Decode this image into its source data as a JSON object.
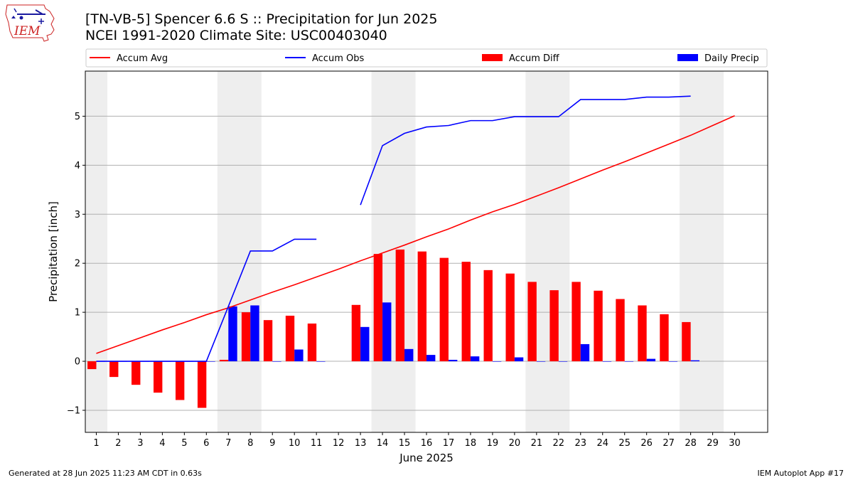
{
  "header": {
    "title_line1": "[TN-VB-5] Spencer 6.6 S :: Precipitation for Jun 2025",
    "title_line2": "NCEI 1991-2020 Climate Site: USC00403040",
    "logo_text": "IEM"
  },
  "footer": {
    "generated": "Generated at 28 Jun 2025 11:23 AM CDT in 0.63s",
    "app": "IEM Autoplot App #17"
  },
  "chart_data": {
    "type": "bar",
    "xlabel": "June 2025",
    "ylabel": "Precipitation [inch]",
    "xlim": [
      0.5,
      31.5
    ],
    "ylim": [
      -1.45,
      5.92
    ],
    "yticks": [
      -1,
      0,
      1,
      2,
      3,
      4,
      5
    ],
    "ytick_labels": [
      "−1",
      "0",
      "1",
      "2",
      "3",
      "4",
      "5"
    ],
    "days": [
      1,
      2,
      3,
      4,
      5,
      6,
      7,
      8,
      9,
      10,
      11,
      12,
      13,
      14,
      15,
      16,
      17,
      18,
      19,
      20,
      21,
      22,
      23,
      24,
      25,
      26,
      27,
      28,
      29,
      30
    ],
    "weekend_shading": [
      [
        0.5,
        1.5
      ],
      [
        6.5,
        8.5
      ],
      [
        13.5,
        15.5
      ],
      [
        20.5,
        22.5
      ],
      [
        27.5,
        29.5
      ]
    ],
    "grid": "horizontal",
    "legend_position": "top",
    "legend": [
      {
        "label": "Accum Avg",
        "kind": "line",
        "color": "#ff0000"
      },
      {
        "label": "Accum Obs",
        "kind": "line",
        "color": "#0000ff"
      },
      {
        "label": "Accum Diff",
        "kind": "bar",
        "color": "#ff0000"
      },
      {
        "label": "Daily Precip",
        "kind": "bar",
        "color": "#0000ff"
      }
    ],
    "series": [
      {
        "name": "Accum Avg",
        "kind": "line",
        "color": "#ff0000",
        "x": [
          1,
          2,
          3,
          4,
          5,
          6,
          7,
          8,
          9,
          10,
          11,
          12,
          13,
          14,
          15,
          16,
          17,
          18,
          19,
          20,
          21,
          22,
          23,
          24,
          25,
          26,
          27,
          28,
          29,
          30
        ],
        "values": [
          0.16,
          0.32,
          0.48,
          0.64,
          0.79,
          0.95,
          1.09,
          1.25,
          1.41,
          1.56,
          1.72,
          1.88,
          2.05,
          2.21,
          2.37,
          2.54,
          2.7,
          2.88,
          3.05,
          3.2,
          3.37,
          3.54,
          3.72,
          3.9,
          4.07,
          4.25,
          4.43,
          4.61,
          4.81,
          5.01
        ]
      },
      {
        "name": "Accum Obs",
        "kind": "line",
        "color": "#0000ff",
        "x": [
          1,
          2,
          3,
          4,
          5,
          6,
          7,
          8,
          9,
          10,
          11,
          12,
          13,
          14,
          15,
          16,
          17,
          18,
          19,
          20,
          21,
          22,
          23,
          24,
          25,
          26,
          27,
          28
        ],
        "values": [
          0,
          0,
          0,
          0,
          0,
          0,
          1.12,
          2.25,
          2.25,
          2.49,
          2.49,
          null,
          3.19,
          4.4,
          4.65,
          4.78,
          4.81,
          4.91,
          4.91,
          4.99,
          4.99,
          4.99,
          5.34,
          5.34,
          5.34,
          5.39,
          5.39,
          5.41
        ]
      },
      {
        "name": "Accum Diff",
        "kind": "bar",
        "color": "#ff0000",
        "x": [
          1,
          2,
          3,
          4,
          5,
          6,
          7,
          8,
          9,
          10,
          11,
          12,
          13,
          14,
          15,
          16,
          17,
          18,
          19,
          20,
          21,
          22,
          23,
          24,
          25,
          26,
          27,
          28
        ],
        "values": [
          -0.16,
          -0.32,
          -0.48,
          -0.64,
          -0.79,
          -0.95,
          0.03,
          1.0,
          0.84,
          0.93,
          0.77,
          null,
          1.15,
          2.19,
          2.28,
          2.24,
          2.11,
          2.03,
          1.86,
          1.79,
          1.62,
          1.45,
          1.62,
          1.44,
          1.27,
          1.14,
          0.96,
          0.8
        ]
      },
      {
        "name": "Daily Precip",
        "kind": "bar",
        "color": "#0000ff",
        "x": [
          1,
          2,
          3,
          4,
          5,
          6,
          7,
          8,
          9,
          10,
          11,
          12,
          13,
          14,
          15,
          16,
          17,
          18,
          19,
          20,
          21,
          22,
          23,
          24,
          25,
          26,
          27,
          28
        ],
        "values": [
          0,
          0,
          0,
          0,
          0,
          0,
          1.12,
          1.14,
          0,
          0.24,
          0,
          null,
          0.7,
          1.2,
          0.25,
          0.13,
          0.03,
          0.1,
          0,
          0.08,
          0,
          0,
          0.35,
          0,
          0,
          0.05,
          0,
          0.02
        ]
      }
    ]
  }
}
